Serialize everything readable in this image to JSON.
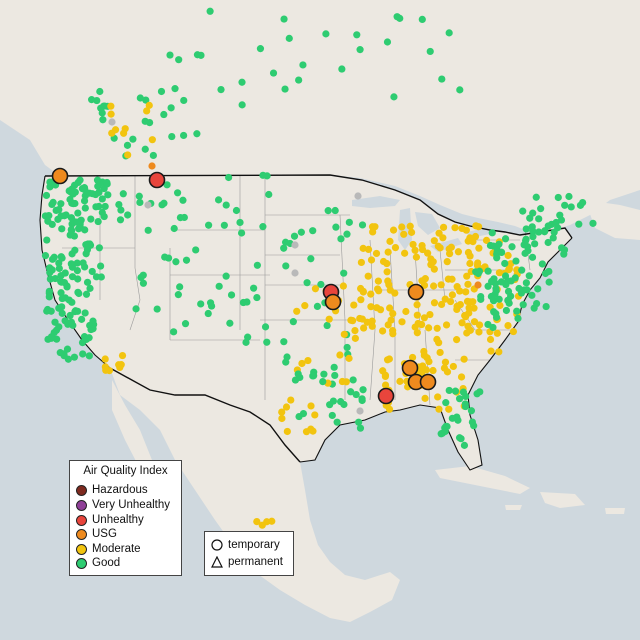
{
  "map": {
    "colors": {
      "ocean": "#cfd8de",
      "land": "#ece8e1",
      "hazardous": "#7e2a1f",
      "very_unhealthy": "#8f3f97",
      "unhealthy": "#e8453c",
      "usg": "#ee8a1e",
      "moderate": "#f2c40f",
      "good": "#2ecc71",
      "nodata": "#b9b9b9"
    },
    "zoom_level": "continental United States"
  },
  "legend": {
    "title": "Air Quality Index",
    "items": [
      {
        "label": "Hazardous",
        "color": "#7e2a1f"
      },
      {
        "label": "Very Unhealthy",
        "color": "#8f3f97"
      },
      {
        "label": "Unhealthy",
        "color": "#e8453c"
      },
      {
        "label": "USG",
        "color": "#ee8a1e"
      },
      {
        "label": "Moderate",
        "color": "#f2c40f"
      },
      {
        "label": "Good",
        "color": "#2ecc71"
      }
    ]
  },
  "monitor_type_legend": {
    "temporary_label": "temporary",
    "permanent_label": "permanent",
    "temporary_icon": "circle-icon",
    "permanent_icon": "triangle-icon"
  }
}
